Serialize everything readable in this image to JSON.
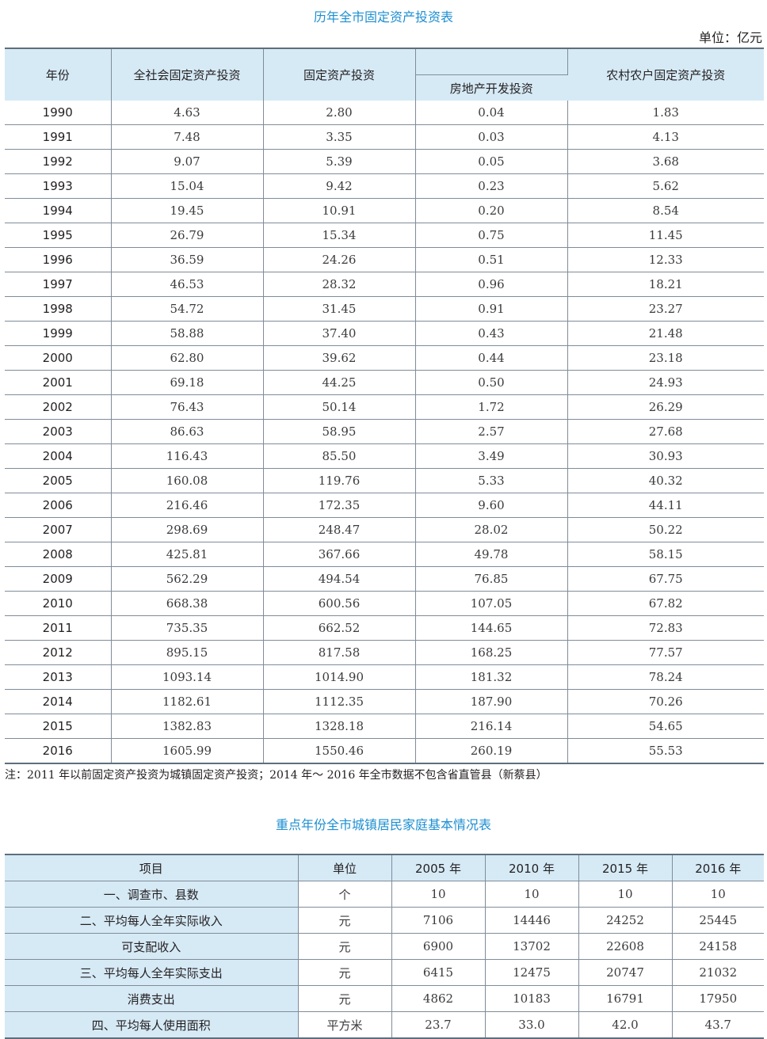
{
  "table1": {
    "title": "历年全市固定资产投资表",
    "unit": "单位：亿元",
    "headers": {
      "year": "年份",
      "total": "全社会固定资产投资",
      "fixed": "固定资产投资",
      "realestate": "房地产开发投资",
      "rural": "农村农户固定资产投资"
    },
    "rows": [
      [
        "1990",
        "4.63",
        "2.80",
        "0.04",
        "1.83"
      ],
      [
        "1991",
        "7.48",
        "3.35",
        "0.03",
        "4.13"
      ],
      [
        "1992",
        "9.07",
        "5.39",
        "0.05",
        "3.68"
      ],
      [
        "1993",
        "15.04",
        "9.42",
        "0.23",
        "5.62"
      ],
      [
        "1994",
        "19.45",
        "10.91",
        "0.20",
        "8.54"
      ],
      [
        "1995",
        "26.79",
        "15.34",
        "0.75",
        "11.45"
      ],
      [
        "1996",
        "36.59",
        "24.26",
        "0.51",
        "12.33"
      ],
      [
        "1997",
        "46.53",
        "28.32",
        "0.96",
        "18.21"
      ],
      [
        "1998",
        "54.72",
        "31.45",
        "0.91",
        "23.27"
      ],
      [
        "1999",
        "58.88",
        "37.40",
        "0.43",
        "21.48"
      ],
      [
        "2000",
        "62.80",
        "39.62",
        "0.44",
        "23.18"
      ],
      [
        "2001",
        "69.18",
        "44.25",
        "0.50",
        "24.93"
      ],
      [
        "2002",
        "76.43",
        "50.14",
        "1.72",
        "26.29"
      ],
      [
        "2003",
        "86.63",
        "58.95",
        "2.57",
        "27.68"
      ],
      [
        "2004",
        "116.43",
        "85.50",
        "3.49",
        "30.93"
      ],
      [
        "2005",
        "160.08",
        "119.76",
        "5.33",
        "40.32"
      ],
      [
        "2006",
        "216.46",
        "172.35",
        "9.60",
        "44.11"
      ],
      [
        "2007",
        "298.69",
        "248.47",
        "28.02",
        "50.22"
      ],
      [
        "2008",
        "425.81",
        "367.66",
        "49.78",
        "58.15"
      ],
      [
        "2009",
        "562.29",
        "494.54",
        "76.85",
        "67.75"
      ],
      [
        "2010",
        "668.38",
        "600.56",
        "107.05",
        "67.82"
      ],
      [
        "2011",
        "735.35",
        "662.52",
        "144.65",
        "72.83"
      ],
      [
        "2012",
        "895.15",
        "817.58",
        "168.25",
        "77.57"
      ],
      [
        "2013",
        "1093.14",
        "1014.90",
        "181.32",
        "78.24"
      ],
      [
        "2014",
        "1182.61",
        "1112.35",
        "187.90",
        "70.26"
      ],
      [
        "2015",
        "1382.83",
        "1328.18",
        "216.14",
        "54.65"
      ],
      [
        "2016",
        "1605.99",
        "1550.46",
        "260.19",
        "55.53"
      ]
    ],
    "note": "注：2011 年以前固定资产投资为城镇固定资产投资；2014 年～ 2016 年全市数据不包含省直管县（新蔡县）"
  },
  "table2": {
    "title": "重点年份全市城镇居民家庭基本情况表",
    "headers": [
      "项目",
      "单位",
      "2005 年",
      "2010 年",
      "2015 年",
      "2016 年"
    ],
    "rows": [
      [
        "一、调查市、县数",
        "个",
        "10",
        "10",
        "10",
        "10"
      ],
      [
        "二、平均每人全年实际收入",
        "元",
        "7106",
        "14446",
        "24252",
        "25445"
      ],
      [
        "可支配收入",
        "元",
        "6900",
        "13702",
        "22608",
        "24158"
      ],
      [
        "三、平均每人全年实际支出",
        "元",
        "6415",
        "12475",
        "20747",
        "21032"
      ],
      [
        "消费支出",
        "元",
        "4862",
        "10183",
        "16791",
        "17950"
      ],
      [
        "四、平均每人使用面积",
        "平方米",
        "23.7",
        "33.0",
        "42.0",
        "43.7"
      ]
    ]
  }
}
